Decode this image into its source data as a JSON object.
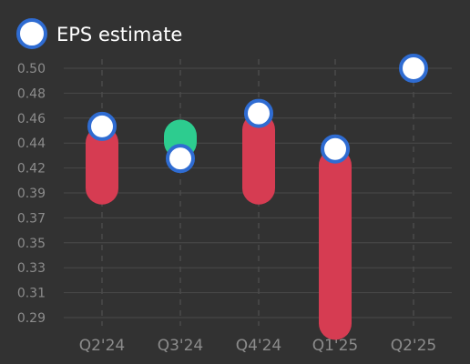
{
  "chart_data": {
    "type": "bar",
    "subtype": "eps-estimate-vs-actual",
    "legend": {
      "label": "EPS estimate",
      "position": "top-left"
    },
    "categories": [
      "Q2'24",
      "Q3'24",
      "Q4'24",
      "Q1'25",
      "Q2'25"
    ],
    "estimate": [
      0.451,
      0.424,
      0.462,
      0.432,
      0.5
    ],
    "actual": [
      0.399,
      0.443,
      0.399,
      0.285,
      null
    ],
    "y_ticks": [
      "0.29",
      "0.31",
      "0.33",
      "0.35",
      "0.37",
      "0.39",
      "0.42",
      "0.44",
      "0.46",
      "0.48",
      "0.50"
    ],
    "ylim": [
      0.29,
      0.5
    ],
    "grid": {
      "horizontal": true,
      "vertical": "dashed"
    },
    "colors": {
      "background": "#323232",
      "grid": "#4a4a4a",
      "miss": "#d63c52",
      "beat": "#2dcc8f",
      "marker_fill": "#ffffff",
      "marker_stroke": "#2f6cd2",
      "tick_text": "#8c8c8c",
      "legend_text": "#ffffff"
    }
  }
}
